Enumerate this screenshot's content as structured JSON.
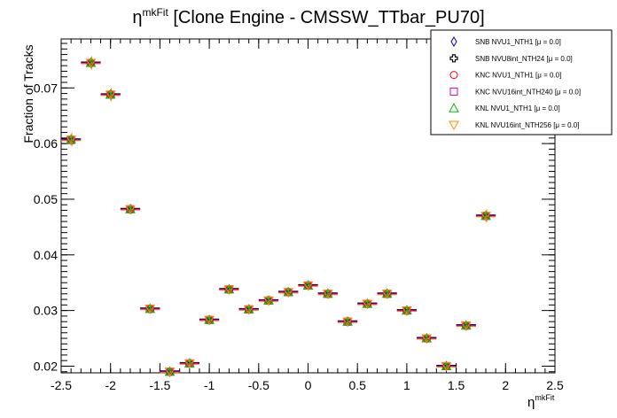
{
  "chart_data": {
    "type": "scatter",
    "title": {
      "main": "η",
      "sup": "mkFit",
      "rest": " [Clone Engine - CMSSW_TTbar_PU70]"
    },
    "xlabel": {
      "main": "η",
      "sup": "mkFit"
    },
    "ylabel": "Fraction of Tracks",
    "xlim": [
      -2.5,
      2.5
    ],
    "ylim": [
      0.0188,
      0.0788
    ],
    "x_ticks": [
      -2.5,
      -2,
      -1.5,
      -1,
      -0.5,
      0,
      0.5,
      1,
      1.5,
      2,
      2.5
    ],
    "x_tick_labels": [
      "-2.5",
      "-2",
      "-1.5",
      "-1",
      "-0.5",
      "0",
      "0.5",
      "1",
      "1.5",
      "2",
      "2.5"
    ],
    "y_ticks": [
      0.02,
      0.03,
      0.04,
      0.05,
      0.06,
      0.07
    ],
    "y_tick_labels": [
      "0.02",
      "0.03",
      "0.04",
      "0.05",
      "0.06",
      "0.07"
    ],
    "bin_half_width": 0.1,
    "x": [
      -2.4,
      -2.2,
      -2.0,
      -1.8,
      -1.6,
      -1.4,
      -1.2,
      -1.0,
      -0.8,
      -0.6,
      -0.4,
      -0.2,
      0.0,
      0.2,
      0.4,
      0.6,
      0.8,
      1.0,
      1.2,
      1.4,
      1.6,
      1.8
    ],
    "y": [
      0.0607,
      0.0745,
      0.0688,
      0.0482,
      0.0303,
      0.019,
      0.0205,
      0.0283,
      0.0338,
      0.0302,
      0.0318,
      0.0333,
      0.0345,
      0.033,
      0.028,
      0.0312,
      0.033,
      0.03,
      0.025,
      0.02,
      0.0273,
      0.047
    ],
    "errors": [
      0.0012,
      0.0012,
      0.0012,
      0.0009,
      0.0008,
      0.0006,
      0.0006,
      0.0008,
      0.0008,
      0.0008,
      0.0008,
      0.0008,
      0.0008,
      0.0008,
      0.0008,
      0.0008,
      0.0008,
      0.0008,
      0.0008,
      0.0007,
      0.0008,
      0.0012
    ],
    "series": [
      {
        "name": "SNB NVU1_NTH1 [μ = 0.0]",
        "marker": "diamond",
        "color": "#0000cc"
      },
      {
        "name": "SNB NVU8int_NTH24 [μ = 0.0]",
        "marker": "cross",
        "color": "#000000"
      },
      {
        "name": "KNC NVU1_NTH1 [μ = 0.0]",
        "marker": "circle",
        "color": "#ff0000"
      },
      {
        "name": "KNC NVU16int_NTH240 [μ = 0.0]",
        "marker": "square",
        "color": "#cc00cc"
      },
      {
        "name": "KNL NVU1_NTH1 [μ = 0.0]",
        "marker": "triangle",
        "color": "#00bb00"
      },
      {
        "name": "KNL NVU16int_NTH256 [μ = 0.0]",
        "marker": "triangle-down",
        "color": "#ff8800"
      }
    ],
    "legend_position": "top-right",
    "grid": false
  }
}
